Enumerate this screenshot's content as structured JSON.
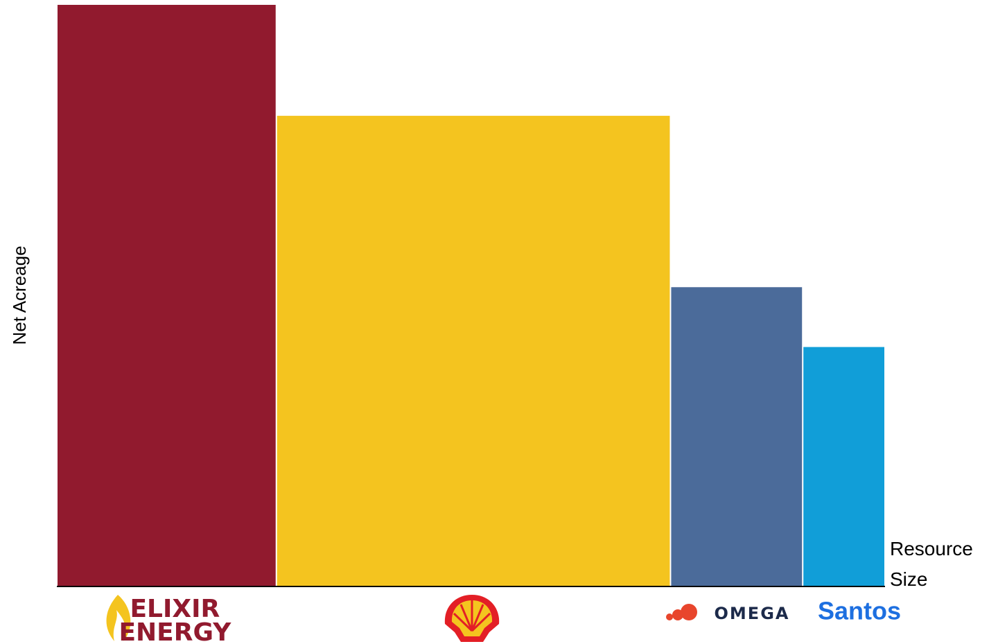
{
  "chart_data": {
    "type": "variwide",
    "y_label": "Net Acreage",
    "x_label": "Resource Size",
    "categories": [
      "ELIXIR ENERGY",
      null,
      "OMEGA",
      "Santos"
    ],
    "values": [
      100,
      80.9,
      51.4,
      41.1
    ],
    "widths": [
      26.4,
      47.4,
      15.9,
      9.9
    ],
    "colors": [
      "#911a2e",
      "#f4c41f",
      "#4b6b9a",
      "#119ed8"
    ],
    "ylim": [
      0,
      100
    ],
    "xlim": [
      0,
      99.6
    ],
    "grid": false
  }
}
